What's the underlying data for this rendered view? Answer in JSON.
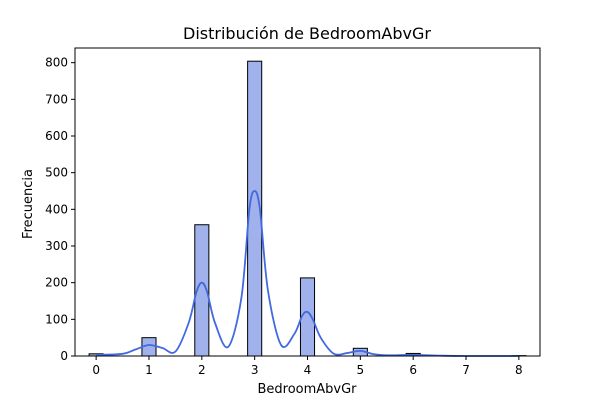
{
  "chart_data": {
    "type": "bar",
    "title": "Distribución de BedroomAbvGr",
    "xlabel": "BedroomAbvGr",
    "ylabel": "Frecuencia",
    "xlim": [
      -0.4,
      8.4
    ],
    "ylim": [
      0,
      840
    ],
    "xticks": [
      "0",
      "1",
      "2",
      "3",
      "4",
      "5",
      "6",
      "7",
      "8"
    ],
    "yticks": [
      "0",
      "100",
      "200",
      "300",
      "400",
      "500",
      "600",
      "700",
      "800"
    ],
    "bin_width": 0.2667,
    "bins": [
      {
        "x": 0,
        "value": 6
      },
      {
        "x": 1,
        "value": 50
      },
      {
        "x": 2,
        "value": 358
      },
      {
        "x": 3,
        "value": 804
      },
      {
        "x": 4,
        "value": 213
      },
      {
        "x": 5,
        "value": 21
      },
      {
        "x": 6,
        "value": 7
      },
      {
        "x": 8,
        "value": 1
      }
    ],
    "kde": {
      "x": [
        0,
        0.5,
        0.75,
        1,
        1.25,
        1.5,
        1.75,
        1.9,
        2,
        2.1,
        2.25,
        2.5,
        2.75,
        2.9,
        3,
        3.1,
        3.25,
        3.5,
        3.75,
        3.9,
        4,
        4.1,
        4.25,
        4.5,
        4.75,
        5,
        5.25,
        5.5,
        6,
        6.5,
        7,
        8
      ],
      "y": [
        3,
        6,
        18,
        30,
        22,
        12,
        90,
        175,
        200,
        175,
        90,
        25,
        160,
        400,
        450,
        400,
        180,
        30,
        60,
        110,
        120,
        100,
        50,
        6,
        8,
        14,
        5,
        2,
        3,
        1,
        0,
        0
      ]
    },
    "colors": {
      "bar_fill": "#a0b1eb",
      "bar_edge": "#000000",
      "kde_line": "#4169e1"
    },
    "grid": false,
    "legend": "none"
  }
}
